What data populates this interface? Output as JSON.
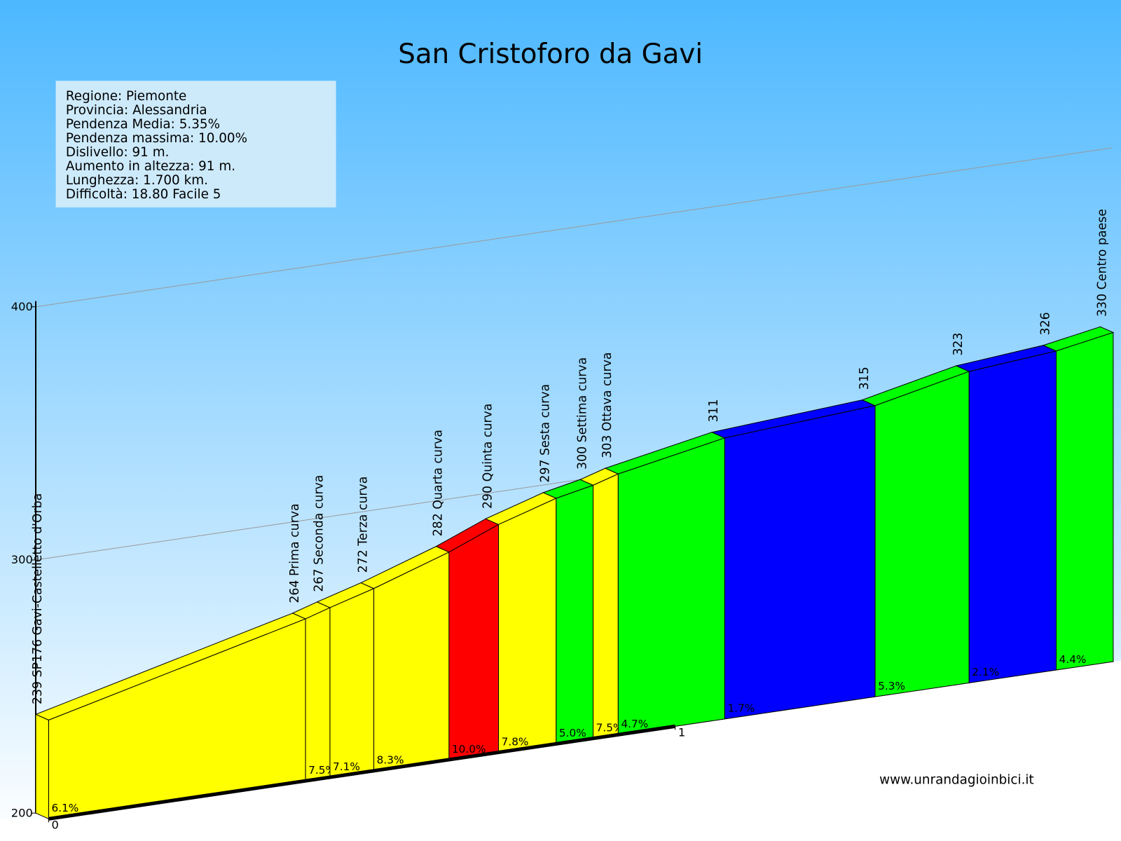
{
  "chart_data": {
    "type": "profile",
    "title": "San Cristoforo da Gavi",
    "info": [
      "Regione: Piemonte",
      "Provincia: Alessandria",
      "Pendenza Media: 5.35%",
      "Pendenza massima: 10.00%",
      "Dislivello:   91 m.",
      "Aumento in altezza:   91 m.",
      "Lunghezza:  1.700 km.",
      "Difficoltà: 18.80 Facile 5"
    ],
    "x": [
      0,
      0.41,
      0.449,
      0.519,
      0.639,
      0.718,
      0.81,
      0.869,
      0.909,
      1.079,
      1.319,
      1.469,
      1.608,
      1.699
    ],
    "values": [
      239,
      264,
      267,
      272,
      282,
      290,
      297,
      300,
      303,
      311,
      315,
      323,
      326,
      330
    ],
    "value_labels": [
      "239 SP176 Gavi-Castelletto d'Orba",
      "264 Prima curva",
      "267 Seconda curva",
      "272 Terza curva",
      "282 Quarta curva",
      "290 Quinta curva",
      "297 Sesta curva",
      "300 Settima curva",
      "303 Ottava curva",
      "311",
      "315",
      "323",
      "326",
      "330 Centro paese"
    ],
    "segments": {
      "labels": [
        "6.1%",
        "7.5%",
        "7.1%",
        "8.3%",
        "10.0%",
        "7.8%",
        "5.0%",
        "7.5%",
        "4.7%",
        "1.7%",
        "5.3%",
        "2.1%",
        "4.4%"
      ],
      "colors": [
        "#ffff00",
        "#ffff00",
        "#ffff00",
        "#ffff00",
        "#ff0000",
        "#ffff00",
        "#00ff00",
        "#ffff00",
        "#00ff00",
        "#0000ff",
        "#00ff00",
        "#0000ff",
        "#00ff00"
      ]
    },
    "xlim": [
      0,
      1.7
    ],
    "xticks": [
      0,
      1
    ],
    "ylim": [
      200,
      400
    ],
    "yticks": [
      200,
      300,
      400
    ],
    "grid": true,
    "credit": "www.unrandagioinbici.it"
  }
}
